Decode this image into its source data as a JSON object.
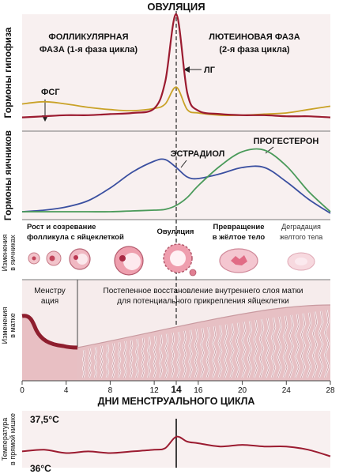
{
  "top_label": "ОВУЛЯЦИЯ",
  "hormones_pituitary": {
    "ylabel": "Гормоны гипофиза",
    "follicular_line1": "ФОЛЛИКУЛЯРНАЯ",
    "follicular_line2": "ФАЗА (1-я фаза цикла)",
    "luteal_line1": "ЛЮТЕИНОВАЯ ФАЗА",
    "luteal_line2": "(2-я фаза цикла)",
    "fsh_label": "ФСГ",
    "lh_label": "ЛГ"
  },
  "hormones_ovary": {
    "ylabel": "Гормоны яичников",
    "estradiol_label": "ЭСТРАДИОЛ",
    "progesterone_label": "ПРОГЕСТЕРОН"
  },
  "ovary_changes": {
    "ylabel_line1": "Изменения",
    "ylabel_line2": "в яичниках",
    "stage1_line1": "Рост и созревание",
    "stage1_line2": "фолликула с яйцеклеткой",
    "stage2": "Овуляция",
    "stage3_line1": "Превращение",
    "stage3_line2": "в жёлтое тело",
    "stage4_line1": "Деградация",
    "stage4_line2": "желтого тела"
  },
  "uterus_changes": {
    "ylabel_line1": "Изменения",
    "ylabel_line2": "в матке",
    "menstruation_line1": "Менстру",
    "menstruation_line2": "ация",
    "rebuild_line1": "Постепенное восстановление внутреннего слоя матки",
    "rebuild_line2": "для потенциального прикрепления яйцеклетки"
  },
  "days_axis": {
    "title": "ДНИ МЕНСТРУАЛЬНОГО ЦИКЛА",
    "ticks": [
      "0",
      "4",
      "8",
      "12",
      "14",
      "16",
      "20",
      "24",
      "28"
    ]
  },
  "temperature": {
    "ylabel_line1": "Температура",
    "ylabel_line2": "в прямой кишке",
    "high_label": "37,5°C",
    "low_label": "36°C"
  },
  "colors": {
    "lh": "#9b1b30",
    "fsh": "#c9a227",
    "estradiol": "#3a4fa0",
    "progesterone": "#4a9a5a",
    "temperature": "#9b1b30",
    "endometrium": "#d9a8ac",
    "menstrual": "#8e1e2e",
    "background": "#f7eeee"
  },
  "chart_data": [
    {
      "type": "line",
      "x": [
        0,
        2,
        4,
        6,
        8,
        10,
        12,
        13,
        14,
        15,
        16,
        18,
        20,
        22,
        24,
        26,
        28
      ],
      "series": [
        {
          "name": "ЛГ",
          "values": [
            8,
            9,
            10,
            10,
            11,
            12,
            16,
            40,
            100,
            30,
            14,
            11,
            10,
            10,
            9,
            9,
            8
          ]
        },
        {
          "name": "ФСГ",
          "values": [
            20,
            22,
            20,
            17,
            15,
            14,
            16,
            20,
            35,
            15,
            12,
            10,
            10,
            11,
            12,
            15,
            18
          ]
        }
      ]
    },
    {
      "type": "line",
      "x": [
        0,
        2,
        4,
        6,
        8,
        10,
        12,
        13,
        14,
        15,
        16,
        18,
        20,
        22,
        24,
        26,
        28
      ],
      "series": [
        {
          "name": "ЭСТРАДИОЛ",
          "values": [
            2,
            4,
            8,
            16,
            32,
            52,
            66,
            68,
            58,
            46,
            44,
            50,
            58,
            58,
            40,
            18,
            0
          ]
        },
        {
          "name": "ПРОГЕСТЕРОН",
          "values": [
            2,
            2,
            2,
            2,
            2,
            3,
            4,
            5,
            10,
            20,
            35,
            60,
            78,
            80,
            60,
            28,
            2
          ]
        }
      ]
    },
    {
      "type": "line",
      "x": [
        0,
        2,
        4,
        6,
        8,
        10,
        12,
        13,
        14,
        15,
        16,
        18,
        20,
        22,
        24,
        26,
        28
      ],
      "ylim": [
        36,
        37.5
      ],
      "series": [
        {
          "name": "",
          "values": [
            36.45,
            36.5,
            36.4,
            36.45,
            36.4,
            36.45,
            36.5,
            36.55,
            36.9,
            36.75,
            36.7,
            36.6,
            36.65,
            36.6,
            36.6,
            36.5,
            36.3
          ]
        }
      ]
    }
  ]
}
